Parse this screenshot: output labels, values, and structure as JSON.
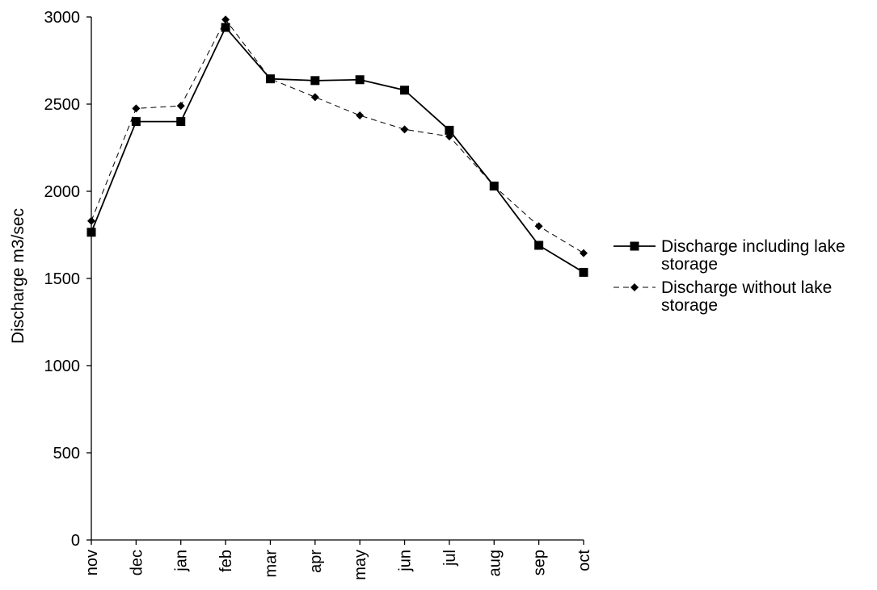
{
  "chart_data": {
    "type": "line",
    "title": "",
    "xlabel": "",
    "ylabel": "Discharge m3/sec",
    "categories": [
      "nov",
      "dec",
      "jan",
      "feb",
      "mar",
      "apr",
      "may",
      "jun",
      "jul",
      "aug",
      "sep",
      "oct"
    ],
    "ylim": [
      0,
      3000
    ],
    "yticks": [
      0,
      500,
      1000,
      1500,
      2000,
      2500,
      3000
    ],
    "grid": false,
    "legend_position": "right",
    "series": [
      {
        "name": "Discharge including lake storage",
        "legend_lines": [
          "Discharge including lake",
          "storage"
        ],
        "marker": "square",
        "line_style": "solid",
        "color": "#000000",
        "values": [
          1765,
          2400,
          2400,
          2940,
          2645,
          2635,
          2640,
          2580,
          2350,
          2030,
          1690,
          1535
        ]
      },
      {
        "name": "Discharge without lake storage",
        "legend_lines": [
          "Discharge without lake",
          "storage"
        ],
        "marker": "diamond",
        "line_style": "dashed",
        "color": "#000000",
        "values": [
          1830,
          2475,
          2490,
          2985,
          2645,
          2540,
          2435,
          2355,
          2315,
          2030,
          1800,
          1645
        ]
      }
    ]
  }
}
